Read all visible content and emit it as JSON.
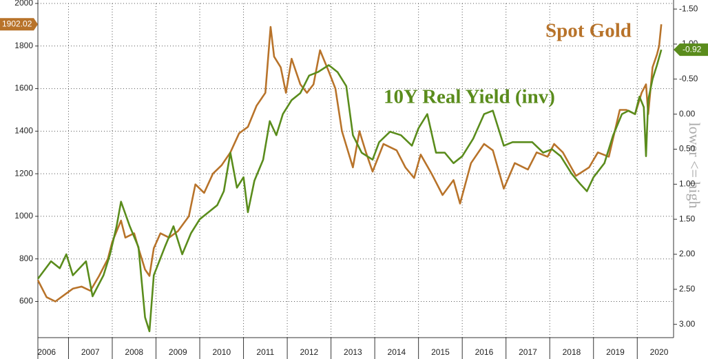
{
  "chart_data": {
    "type": "line",
    "annotations": [
      "Spot Gold",
      "10Y Real Yield (inv)"
    ],
    "y2label": "lower <= high",
    "xlim": [
      2006.3,
      2020.83
    ],
    "xticks": [
      {
        "value": 2006.5,
        "label": "2006"
      },
      {
        "value": 2007.5,
        "label": "2007"
      },
      {
        "value": 2008.5,
        "label": "2008"
      },
      {
        "value": 2009.5,
        "label": "2009"
      },
      {
        "value": 2010.5,
        "label": "2010"
      },
      {
        "value": 2011.5,
        "label": "2011"
      },
      {
        "value": 2012.5,
        "label": "2012"
      },
      {
        "value": 2013.5,
        "label": "2013"
      },
      {
        "value": 2014.5,
        "label": "2014"
      },
      {
        "value": 2015.5,
        "label": "2015"
      },
      {
        "value": 2016.5,
        "label": "2016"
      },
      {
        "value": 2017.5,
        "label": "2017"
      },
      {
        "value": 2018.5,
        "label": "2018"
      },
      {
        "value": 2019.5,
        "label": "2019"
      },
      {
        "value": 2020.5,
        "label": "2020"
      }
    ],
    "x_gridlines": [
      2007,
      2008,
      2009,
      2010,
      2011,
      2012,
      2013,
      2014,
      2015,
      2016,
      2017,
      2018,
      2019,
      2020
    ],
    "ylim": [
      430,
      2000
    ],
    "yticks": [
      600,
      800,
      1000,
      1200,
      1400,
      1600,
      1800,
      2000
    ],
    "y2lim": [
      -1.58,
      3.19
    ],
    "y2_inverted": true,
    "y2ticks": [
      {
        "value": -1.5,
        "label": "-1.50"
      },
      {
        "value": -1,
        "label": "-1.00"
      },
      {
        "value": -0.5,
        "label": "-0.50"
      },
      {
        "value": 0,
        "label": "0.00"
      },
      {
        "value": 0.5,
        "label": "0.50"
      },
      {
        "value": 1,
        "label": "1.00"
      },
      {
        "value": 1.5,
        "label": "1.50"
      },
      {
        "value": 2,
        "label": "2.00"
      },
      {
        "value": 2.5,
        "label": "2.50"
      },
      {
        "value": 3,
        "label": "3.00"
      }
    ],
    "grid": true,
    "series": [
      {
        "name": "Spot Gold",
        "color": "#b8732a",
        "x": [
          2006.3,
          2006.5,
          2006.7,
          2006.9,
          2007.1,
          2007.3,
          2007.5,
          2007.7,
          2007.9,
          2008.0,
          2008.2,
          2008.3,
          2008.5,
          2008.6,
          2008.75,
          2008.85,
          2008.95,
          2009.1,
          2009.3,
          2009.5,
          2009.75,
          2009.9,
          2010.1,
          2010.3,
          2010.5,
          2010.7,
          2010.9,
          2011.1,
          2011.3,
          2011.5,
          2011.62,
          2011.7,
          2011.85,
          2011.97,
          2012.1,
          2012.3,
          2012.45,
          2012.6,
          2012.75,
          2012.95,
          2013.1,
          2013.25,
          2013.5,
          2013.65,
          2013.8,
          2013.95,
          2014.2,
          2014.5,
          2014.7,
          2014.9,
          2015.05,
          2015.3,
          2015.55,
          2015.8,
          2015.95,
          2016.2,
          2016.5,
          2016.7,
          2016.95,
          2017.2,
          2017.5,
          2017.7,
          2017.95,
          2018.1,
          2018.3,
          2018.6,
          2018.9,
          2019.1,
          2019.35,
          2019.6,
          2019.75,
          2019.95,
          2020.1,
          2020.2,
          2020.25,
          2020.35,
          2020.45,
          2020.5,
          2020.55
        ],
        "values": [
          700,
          620,
          600,
          630,
          660,
          670,
          650,
          720,
          800,
          880,
          980,
          900,
          920,
          850,
          750,
          720,
          850,
          920,
          900,
          930,
          1000,
          1150,
          1110,
          1200,
          1240,
          1300,
          1390,
          1420,
          1520,
          1580,
          1890,
          1750,
          1700,
          1580,
          1740,
          1620,
          1580,
          1620,
          1780,
          1680,
          1600,
          1400,
          1230,
          1400,
          1300,
          1210,
          1340,
          1310,
          1230,
          1180,
          1290,
          1200,
          1100,
          1170,
          1060,
          1250,
          1340,
          1310,
          1130,
          1250,
          1220,
          1300,
          1280,
          1340,
          1300,
          1190,
          1230,
          1300,
          1280,
          1500,
          1500,
          1480,
          1580,
          1620,
          1480,
          1700,
          1760,
          1800,
          1902.02
        ]
      },
      {
        "name": "10Y Real Yield (inv)",
        "color": "#5a8c1c",
        "axis": "y2",
        "x": [
          2006.3,
          2006.6,
          2006.8,
          2006.95,
          2007.1,
          2007.4,
          2007.55,
          2007.8,
          2007.95,
          2008.1,
          2008.2,
          2008.4,
          2008.6,
          2008.75,
          2008.85,
          2008.95,
          2009.2,
          2009.4,
          2009.6,
          2009.8,
          2010.0,
          2010.2,
          2010.4,
          2010.55,
          2010.7,
          2010.85,
          2011.0,
          2011.1,
          2011.25,
          2011.45,
          2011.6,
          2011.75,
          2011.9,
          2012.1,
          2012.3,
          2012.5,
          2012.7,
          2012.95,
          2013.15,
          2013.35,
          2013.5,
          2013.7,
          2013.95,
          2014.1,
          2014.35,
          2014.6,
          2014.85,
          2015.0,
          2015.2,
          2015.4,
          2015.6,
          2015.8,
          2016.0,
          2016.25,
          2016.5,
          2016.7,
          2016.95,
          2017.15,
          2017.4,
          2017.6,
          2017.85,
          2018.05,
          2018.25,
          2018.5,
          2018.7,
          2018.85,
          2019.0,
          2019.25,
          2019.45,
          2019.65,
          2019.8,
          2019.95,
          2020.05,
          2020.15,
          2020.2,
          2020.25,
          2020.35,
          2020.45,
          2020.55
        ],
        "values": [
          2.35,
          2.1,
          2.2,
          2.0,
          2.3,
          2.1,
          2.6,
          2.3,
          2.0,
          1.6,
          1.25,
          1.6,
          1.9,
          2.9,
          3.1,
          2.3,
          1.9,
          1.6,
          2.0,
          1.7,
          1.5,
          1.4,
          1.3,
          1.1,
          0.55,
          1.05,
          0.9,
          1.4,
          0.95,
          0.65,
          0.1,
          0.3,
          0.0,
          -0.2,
          -0.3,
          -0.55,
          -0.6,
          -0.7,
          -0.6,
          -0.4,
          0.3,
          0.55,
          0.65,
          0.4,
          0.25,
          0.3,
          0.45,
          0.2,
          0.0,
          0.55,
          0.55,
          0.7,
          0.6,
          0.35,
          0.0,
          -0.05,
          0.45,
          0.4,
          0.4,
          0.4,
          0.55,
          0.5,
          0.6,
          0.85,
          1.0,
          1.1,
          0.9,
          0.7,
          0.3,
          0.0,
          -0.05,
          0.0,
          -0.25,
          -0.1,
          0.6,
          -0.2,
          -0.5,
          -0.7,
          -0.92
        ]
      }
    ]
  }
}
